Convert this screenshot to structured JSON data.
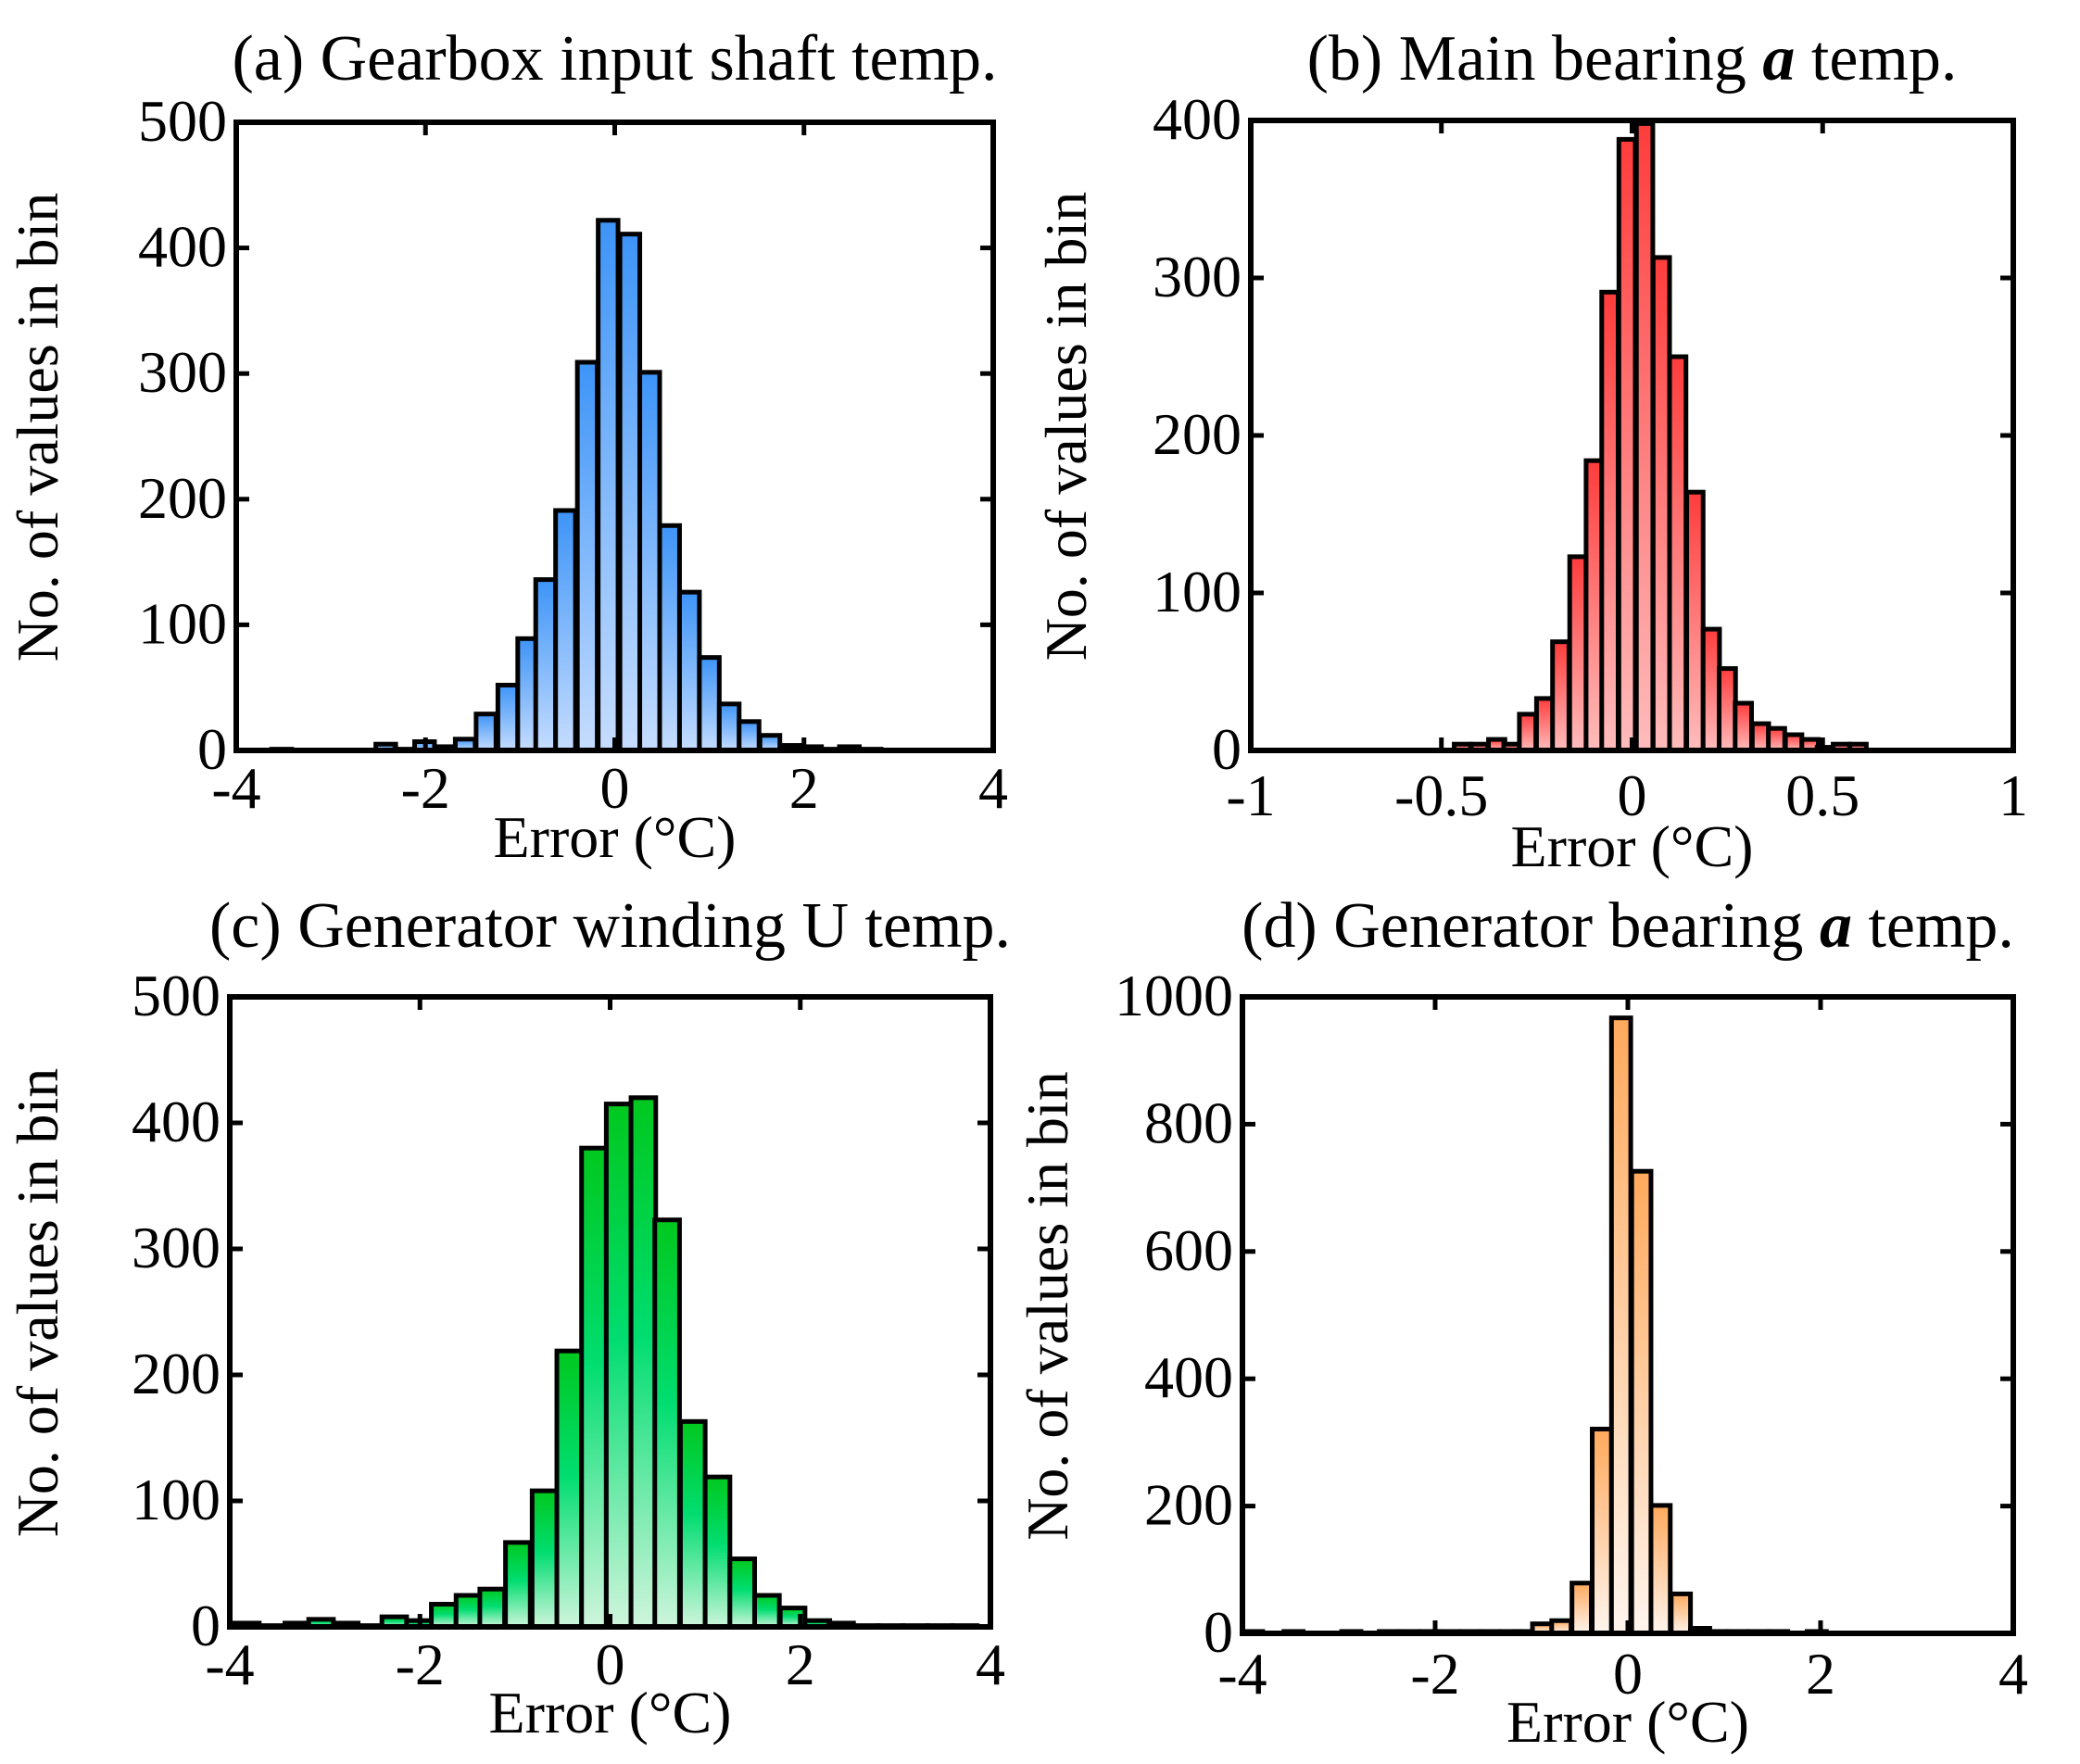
{
  "chart_data": [
    {
      "type": "bar",
      "title": {
        "prefix": "(a) Gearbox input shaft temp.",
        "emph": "",
        "suffix": ""
      },
      "xlabel": "Error (°C)",
      "ylabel": "No. of values in bin",
      "xlim": [
        -4,
        4
      ],
      "ylim": [
        0,
        500
      ],
      "xticks": [
        "-4",
        "-2",
        "0",
        "2",
        "4"
      ],
      "xtick_values": [
        -4,
        -2,
        0,
        2,
        4
      ],
      "yticks": [
        "0",
        "100",
        "200",
        "300",
        "400",
        "500"
      ],
      "ytick_values": [
        0,
        100,
        200,
        300,
        400,
        500
      ],
      "bin_width": 0.21,
      "x": [
        -3.52,
        -2.42,
        -2.22,
        -2.01,
        -1.79,
        -1.58,
        -1.36,
        -1.13,
        -0.92,
        -0.73,
        -0.52,
        -0.29,
        -0.07,
        0.16,
        0.37,
        0.58,
        0.79,
        1.0,
        1.21,
        1.42,
        1.64,
        1.87,
        2.08,
        2.27,
        2.48,
        2.71
      ],
      "values": [
        1,
        5,
        1,
        7,
        3,
        9,
        29,
        52,
        89,
        136,
        191,
        309,
        422,
        411,
        301,
        179,
        126,
        74,
        37,
        23,
        12,
        4,
        3,
        1,
        3,
        1
      ],
      "colors": {
        "top": "#3d94f7",
        "bottom": "#c6ddff"
      }
    },
    {
      "type": "bar",
      "title": {
        "prefix": "(b) Main bearing ",
        "emph": "a",
        "suffix": " temp."
      },
      "xlabel": "Error (°C)",
      "ylabel": "No. of values in bin",
      "xlim": [
        -1,
        1
      ],
      "ylim": [
        0,
        400
      ],
      "xticks": [
        "-1",
        "-0.5",
        "0",
        "0.5",
        "1"
      ],
      "xtick_values": [
        -1,
        -0.5,
        0,
        0.5,
        1
      ],
      "yticks": [
        "0",
        "100",
        "200",
        "300",
        "400"
      ],
      "ytick_values": [
        0,
        100,
        200,
        300,
        400
      ],
      "bin_width": 0.043,
      "x": [
        -0.445,
        -0.4,
        -0.355,
        -0.315,
        -0.274,
        -0.229,
        -0.187,
        -0.142,
        -0.099,
        -0.058,
        -0.013,
        0.033,
        0.077,
        0.12,
        0.165,
        0.208,
        0.25,
        0.292,
        0.337,
        0.379,
        0.424,
        0.467,
        0.507,
        0.549,
        0.593
      ],
      "values": [
        4,
        4,
        7,
        4,
        23,
        33,
        69,
        123,
        184,
        291,
        388,
        398,
        313,
        250,
        164,
        77,
        52,
        30,
        17,
        14,
        10,
        7,
        2,
        4,
        4
      ],
      "colors": {
        "top": "#ff3c3c",
        "bottom": "#ffbcbc"
      }
    },
    {
      "type": "bar",
      "title": {
        "prefix": "(c) Generator winding U temp.",
        "emph": "",
        "suffix": ""
      },
      "xlabel": "Error (°C)",
      "ylabel": "No. of values in bin",
      "xlim": [
        -4,
        4
      ],
      "ylim": [
        0,
        500
      ],
      "xticks": [
        "-4",
        "-2",
        "0",
        "2",
        "4"
      ],
      "xtick_values": [
        -4,
        -2,
        0,
        2,
        4
      ],
      "yticks": [
        "0",
        "100",
        "200",
        "300",
        "400",
        "500"
      ],
      "ytick_values": [
        0,
        100,
        200,
        300,
        400,
        500
      ],
      "bin_width": 0.26,
      "x": [
        -3.82,
        -3.55,
        -3.29,
        -3.04,
        -2.78,
        -2.52,
        -2.27,
        -2.01,
        -1.75,
        -1.49,
        -1.24,
        -0.97,
        -0.69,
        -0.43,
        -0.17,
        0.09,
        0.35,
        0.6,
        0.87,
        1.13,
        1.39,
        1.65,
        1.92,
        2.18,
        2.43,
        2.69,
        2.95,
        3.21,
        3.47,
        3.73
      ],
      "values": [
        3,
        1,
        3,
        6,
        3,
        1,
        8,
        5,
        18,
        25,
        30,
        67,
        108,
        219,
        380,
        415,
        420,
        323,
        163,
        119,
        54,
        25,
        15,
        5,
        3,
        1,
        1,
        1,
        1,
        1
      ],
      "colors": {
        "top": "#00c81e",
        "mid": "#00dd70",
        "bottom": "#cff5dc"
      }
    },
    {
      "type": "bar",
      "title": {
        "prefix": "(d) Generator bearing ",
        "emph": "a",
        "suffix": " temp."
      },
      "xlabel": "Error (°C)",
      "ylabel": "No. of values in bin",
      "xlim": [
        -4,
        4
      ],
      "ylim": [
        0,
        1000
      ],
      "xticks": [
        "-4",
        "-2",
        "0",
        "2",
        "4"
      ],
      "xtick_values": [
        -4,
        -2,
        0,
        2,
        4
      ],
      "yticks": [
        "0",
        "200",
        "400",
        "600",
        "800",
        "1000"
      ],
      "ytick_values": [
        0,
        200,
        400,
        600,
        800,
        1000
      ],
      "bin_width": 0.2,
      "x": [
        -3.89,
        -3.47,
        -2.87,
        -2.48,
        -2.27,
        -2.06,
        -1.85,
        -1.64,
        -1.43,
        -1.22,
        -1.07,
        -0.89,
        -0.69,
        -0.48,
        -0.27,
        -0.07,
        0.14,
        0.34,
        0.55,
        0.75,
        0.93,
        1.14,
        1.35,
        1.56,
        1.96
      ],
      "values": [
        3,
        3,
        3,
        3,
        3,
        3,
        3,
        3,
        3,
        3,
        3,
        15,
        20,
        79,
        321,
        967,
        726,
        201,
        62,
        8,
        3,
        3,
        3,
        3,
        3
      ],
      "colors": {
        "top": "#ffa95c",
        "bottom": "#fff5ee"
      }
    }
  ]
}
